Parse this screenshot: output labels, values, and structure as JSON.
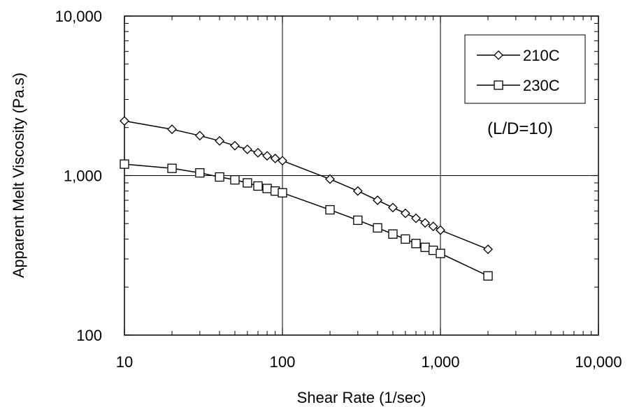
{
  "chart_data": {
    "type": "line",
    "x_scale": "log",
    "y_scale": "log",
    "xlabel": "Shear Rate (1/sec)",
    "ylabel": "Apparent Melt Viscosity (Pa.s)",
    "xlim": [
      10,
      10000
    ],
    "ylim": [
      100,
      10000
    ],
    "x_ticks": [
      10,
      100,
      1000,
      10000
    ],
    "x_tick_labels": [
      "10",
      "100",
      "1,000",
      "10,000"
    ],
    "y_ticks": [
      100,
      1000,
      10000
    ],
    "y_tick_labels": [
      "100",
      "1,000",
      "10,000"
    ],
    "grid": "major",
    "legend_position": "top-right",
    "annotation": "(L/D=10)",
    "series": [
      {
        "name": "210C",
        "marker": "diamond",
        "x": [
          10,
          20,
          30,
          40,
          50,
          60,
          70,
          80,
          90,
          100,
          200,
          300,
          400,
          500,
          600,
          700,
          800,
          900,
          1000,
          2000
        ],
        "y": [
          2200,
          1950,
          1780,
          1650,
          1540,
          1460,
          1390,
          1330,
          1280,
          1240,
          950,
          800,
          700,
          630,
          580,
          540,
          505,
          480,
          455,
          345
        ]
      },
      {
        "name": "230C",
        "marker": "square",
        "x": [
          10,
          20,
          30,
          40,
          50,
          60,
          70,
          80,
          90,
          100,
          200,
          300,
          400,
          500,
          600,
          700,
          800,
          900,
          1000,
          2000
        ],
        "y": [
          1180,
          1110,
          1040,
          980,
          940,
          900,
          860,
          830,
          800,
          780,
          610,
          525,
          470,
          430,
          400,
          375,
          355,
          340,
          325,
          235
        ]
      }
    ]
  }
}
